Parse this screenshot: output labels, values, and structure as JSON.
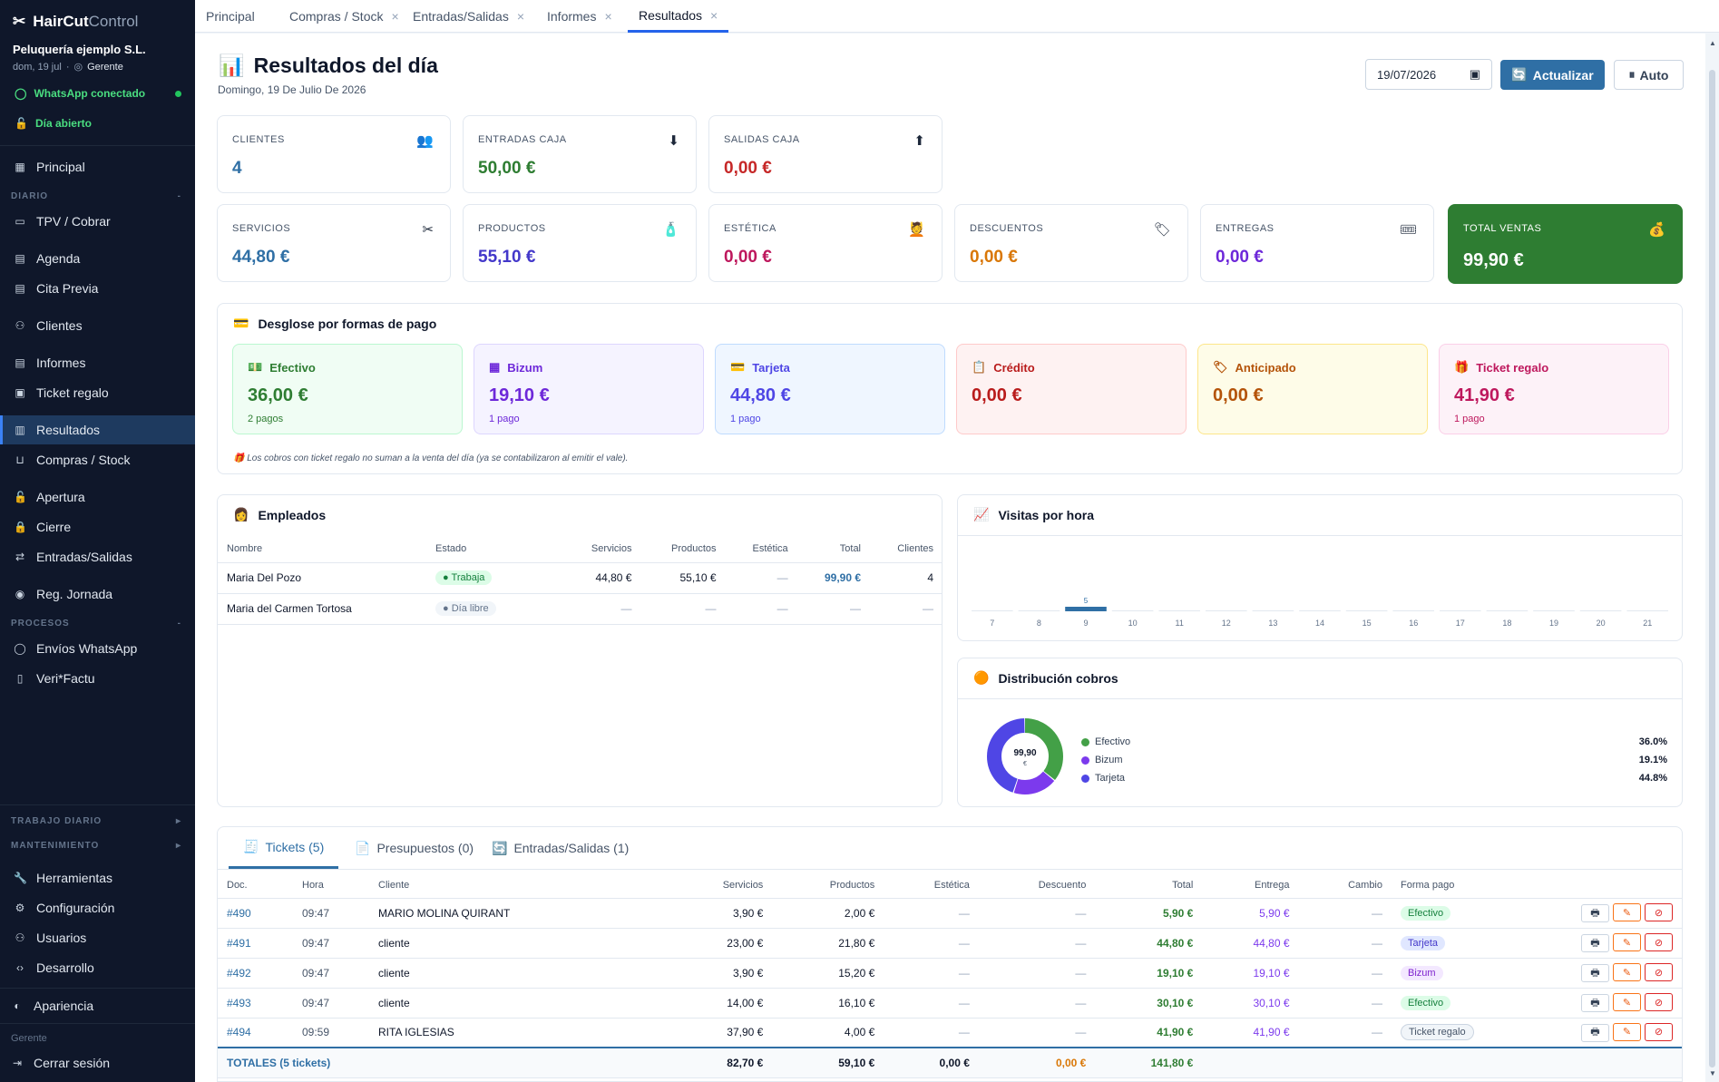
{
  "brand": {
    "name_a": "HairCut",
    "name_b": "Control",
    "business": "Peluquería ejemplo S.L.",
    "date_short": "dom, 19 jul",
    "role_badge": "Gerente"
  },
  "status": {
    "whatsapp": "WhatsApp conectado",
    "day": "Día abierto"
  },
  "nav": {
    "principal": "Principal",
    "sec_diario": "DIARIO",
    "tpv": "TPV / Cobrar",
    "agenda": "Agenda",
    "cita": "Cita Previa",
    "clientes": "Clientes",
    "informes": "Informes",
    "ticket": "Ticket regalo",
    "resultados": "Resultados",
    "compras": "Compras / Stock",
    "apertura": "Apertura",
    "cierre": "Cierre",
    "entradas": "Entradas/Salidas",
    "jornada": "Reg. Jornada",
    "sec_procesos": "PROCESOS",
    "envios": "Envíos WhatsApp",
    "verifactu": "Veri*Factu",
    "sec_trabajo": "TRABAJO DIARIO",
    "sec_mant": "MANTENIMIENTO",
    "herramientas": "Herramientas",
    "config": "Configuración",
    "usuarios": "Usuarios",
    "desarrollo": "Desarrollo",
    "apariencia": "Apariencia",
    "role": "Gerente",
    "logout": "Cerrar sesión"
  },
  "tabs": [
    "Principal",
    "Compras / Stock",
    "Entradas/Salidas",
    "Informes",
    "Resultados"
  ],
  "header": {
    "title": "Resultados del día",
    "subtitle": "Domingo, 19 De Julio De 2026",
    "date": "19/07/2026",
    "refresh": "Actualizar",
    "auto": "Auto"
  },
  "kpis_top": [
    {
      "label": "CLIENTES",
      "value": "4",
      "color": "#2f6fa5",
      "icon": "👥"
    },
    {
      "label": "ENTRADAS CAJA",
      "value": "50,00 €",
      "color": "#2e7d32",
      "icon": "⬇"
    },
    {
      "label": "SALIDAS CAJA",
      "value": "0,00 €",
      "color": "#c62828",
      "icon": "⬆"
    }
  ],
  "kpis": [
    {
      "label": "SERVICIOS",
      "value": "44,80 €",
      "color": "#2f6fa5",
      "icon": "✂"
    },
    {
      "label": "PRODUCTOS",
      "value": "55,10 €",
      "color": "#4338ca",
      "icon": "🧴"
    },
    {
      "label": "ESTÉTICA",
      "value": "0,00 €",
      "color": "#be185d",
      "icon": "💆"
    },
    {
      "label": "DESCUENTOS",
      "value": "0,00 €",
      "color": "#d97706",
      "icon": "🏷"
    },
    {
      "label": "ENTREGAS",
      "value": "0,00 €",
      "color": "#6d28d9",
      "icon": "🎟"
    },
    {
      "label": "TOTAL VENTAS",
      "value": "99,90 €",
      "color": "#ffffff",
      "icon": "💰"
    }
  ],
  "payments": {
    "title": "Desglose por formas de pago",
    "items": [
      {
        "name": "Efectivo",
        "value": "36,00 €",
        "count": "2 pagos",
        "bg": "#f0fdf4",
        "border": "#bbf7d0",
        "color": "#2e7d32",
        "icon": "💵"
      },
      {
        "name": "Bizum",
        "value": "19,10 €",
        "count": "1 pago",
        "bg": "#f5f3ff",
        "border": "#ddd6fe",
        "color": "#6d28d9",
        "icon": "▦"
      },
      {
        "name": "Tarjeta",
        "value": "44,80 €",
        "count": "1 pago",
        "bg": "#eff6ff",
        "border": "#bfdbfe",
        "color": "#4f46e5",
        "icon": "💳"
      },
      {
        "name": "Crédito",
        "value": "0,00 €",
        "count": "",
        "bg": "#fef2f2",
        "border": "#fecaca",
        "color": "#b91c1c",
        "icon": "📋"
      },
      {
        "name": "Anticipado",
        "value": "0,00 €",
        "count": "",
        "bg": "#fefce8",
        "border": "#fde68a",
        "color": "#b45309",
        "icon": "🏷"
      },
      {
        "name": "Ticket regalo",
        "value": "41,90 €",
        "count": "1 pago",
        "bg": "#fdf2f8",
        "border": "#fbcfe8",
        "color": "#be185d",
        "icon": "🎁"
      }
    ],
    "note": "Los cobros con ticket regalo no suman a la venta del día (ya se contabilizaron al emitir el vale)."
  },
  "employees": {
    "title": "Empleados",
    "columns": [
      "Nombre",
      "Estado",
      "Servicios",
      "Productos",
      "Estética",
      "Total",
      "Clientes"
    ],
    "rows": [
      {
        "name": "Maria Del Pozo",
        "status": "Trabaja",
        "serv": "44,80 €",
        "prod": "55,10 €",
        "est": "—",
        "total": "99,90 €",
        "cli": "4"
      },
      {
        "name": "Maria del Carmen Tortosa",
        "status": "Día libre",
        "serv": "—",
        "prod": "—",
        "est": "—",
        "total": "—",
        "cli": "—"
      }
    ]
  },
  "visits": {
    "title": "Visitas por hora"
  },
  "chart_data": {
    "type": "bar",
    "categories": [
      "7",
      "8",
      "9",
      "10",
      "11",
      "12",
      "13",
      "14",
      "15",
      "16",
      "17",
      "18",
      "19",
      "20",
      "21"
    ],
    "values": [
      0,
      0,
      5,
      0,
      0,
      0,
      0,
      0,
      0,
      0,
      0,
      0,
      0,
      0,
      0
    ],
    "title": "Visitas por hora"
  },
  "distribution": {
    "title": "Distribución cobros",
    "center": "99,90",
    "center_unit": "€",
    "items": [
      {
        "name": "Efectivo",
        "pct": "36.0%",
        "value": 36.0,
        "color": "#43a047"
      },
      {
        "name": "Bizum",
        "pct": "19.1%",
        "value": 19.1,
        "color": "#7c3aed"
      },
      {
        "name": "Tarjeta",
        "pct": "44.8%",
        "value": 44.8,
        "color": "#4f46e5"
      }
    ]
  },
  "tickets_tabs": [
    "Tickets (5)",
    "Presupuestos (0)",
    "Entradas/Salidas (1)"
  ],
  "tickets": {
    "columns": [
      "Doc.",
      "Hora",
      "Cliente",
      "Servicios",
      "Productos",
      "Estética",
      "Descuento",
      "Total",
      "Entrega",
      "Cambio",
      "Forma pago"
    ],
    "rows": [
      {
        "doc": "#490",
        "hora": "09:47",
        "cliente": "MARIO MOLINA QUIRANT",
        "serv": "3,90 €",
        "prod": "2,00 €",
        "est": "—",
        "desc": "—",
        "total": "5,90 €",
        "entrega": "5,90 €",
        "cambio": "—",
        "forma": "Efectivo",
        "fcls": "b-green"
      },
      {
        "doc": "#491",
        "hora": "09:47",
        "cliente": "cliente",
        "serv": "23,00 €",
        "prod": "21,80 €",
        "est": "—",
        "desc": "—",
        "total": "44,80 €",
        "entrega": "44,80 €",
        "cambio": "—",
        "forma": "Tarjeta",
        "fcls": "b-blue"
      },
      {
        "doc": "#492",
        "hora": "09:47",
        "cliente": "cliente",
        "serv": "3,90 €",
        "prod": "15,20 €",
        "est": "—",
        "desc": "—",
        "total": "19,10 €",
        "entrega": "19,10 €",
        "cambio": "—",
        "forma": "Bizum",
        "fcls": "b-purple"
      },
      {
        "doc": "#493",
        "hora": "09:47",
        "cliente": "cliente",
        "serv": "14,00 €",
        "prod": "16,10 €",
        "est": "—",
        "desc": "—",
        "total": "30,10 €",
        "entrega": "30,10 €",
        "cambio": "—",
        "forma": "Efectivo",
        "fcls": "b-green"
      },
      {
        "doc": "#494",
        "hora": "09:59",
        "cliente": "RITA IGLESIAS",
        "serv": "37,90 €",
        "prod": "4,00 €",
        "est": "—",
        "desc": "—",
        "total": "41,90 €",
        "entrega": "41,90 €",
        "cambio": "—",
        "forma": "Ticket regalo",
        "fcls": "b-rgray"
      }
    ],
    "totals": {
      "label": "TOTALES (5 tickets)",
      "serv": "82,70 €",
      "prod": "59,10 €",
      "est": "0,00 €",
      "desc": "0,00 €",
      "total": "141,80 €"
    }
  }
}
